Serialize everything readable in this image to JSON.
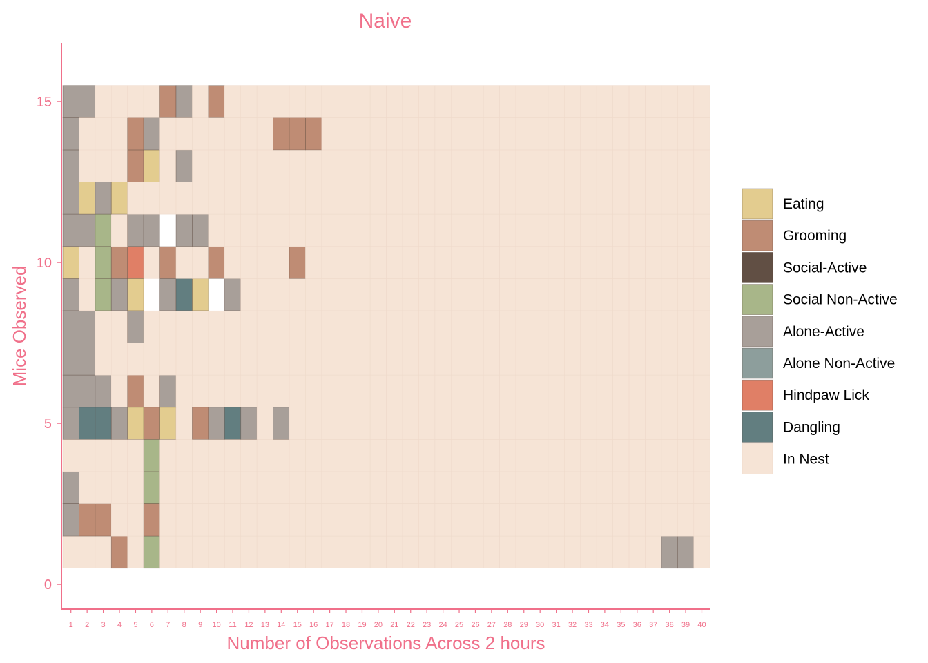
{
  "chart_data": {
    "type": "heatmap",
    "title": "Naive",
    "xlabel": "Number of Observations Across 2 hours",
    "ylabel": "Mice Observed",
    "x_categories": [
      "1",
      "2",
      "3",
      "4",
      "5",
      "6",
      "7",
      "8",
      "9",
      "10",
      "11",
      "12",
      "13",
      "14",
      "15",
      "16",
      "17",
      "18",
      "19",
      "20",
      "21",
      "22",
      "23",
      "24",
      "25",
      "26",
      "27",
      "28",
      "29",
      "30",
      "31",
      "32",
      "33",
      "34",
      "35",
      "36",
      "37",
      "38",
      "39",
      "40"
    ],
    "y_ticks": [
      "0",
      "5",
      "10",
      "15"
    ],
    "ylim": [
      -0.5,
      16.5
    ],
    "mice": [
      1,
      2,
      3,
      4,
      5,
      6,
      7,
      8,
      9,
      10,
      11,
      12,
      13,
      14,
      15
    ],
    "default_state": "In Nest",
    "legend": [
      {
        "label": "Eating",
        "color": "#e3cc8f"
      },
      {
        "label": "Grooming",
        "color": "#bf8c74"
      },
      {
        "label": "Social-Active",
        "color": "#614f44"
      },
      {
        "label": "Social Non-Active",
        "color": "#a8b689"
      },
      {
        "label": "Alone-Active",
        "color": "#a89f99"
      },
      {
        "label": "Alone Non-Active",
        "color": "#8d9e9c"
      },
      {
        "label": "Hindpaw Lick",
        "color": "#e07f66"
      },
      {
        "label": "Dangling",
        "color": "#627e80"
      },
      {
        "label": "In Nest",
        "color": "#f6e4d6"
      }
    ],
    "missing_color": "#ffffff",
    "observations": [
      {
        "mouse": 15,
        "obs": 1,
        "state": "Alone-Active"
      },
      {
        "mouse": 15,
        "obs": 2,
        "state": "Alone-Active"
      },
      {
        "mouse": 15,
        "obs": 7,
        "state": "Grooming"
      },
      {
        "mouse": 15,
        "obs": 8,
        "state": "Alone-Active"
      },
      {
        "mouse": 15,
        "obs": 10,
        "state": "Grooming"
      },
      {
        "mouse": 14,
        "obs": 1,
        "state": "Alone-Active"
      },
      {
        "mouse": 14,
        "obs": 5,
        "state": "Grooming"
      },
      {
        "mouse": 14,
        "obs": 6,
        "state": "Alone-Active"
      },
      {
        "mouse": 14,
        "obs": 14,
        "state": "Grooming"
      },
      {
        "mouse": 14,
        "obs": 15,
        "state": "Grooming"
      },
      {
        "mouse": 14,
        "obs": 16,
        "state": "Grooming"
      },
      {
        "mouse": 13,
        "obs": 1,
        "state": "Alone-Active"
      },
      {
        "mouse": 13,
        "obs": 5,
        "state": "Grooming"
      },
      {
        "mouse": 13,
        "obs": 6,
        "state": "Eating"
      },
      {
        "mouse": 13,
        "obs": 8,
        "state": "Alone-Active"
      },
      {
        "mouse": 12,
        "obs": 1,
        "state": "Alone-Active"
      },
      {
        "mouse": 12,
        "obs": 2,
        "state": "Eating"
      },
      {
        "mouse": 12,
        "obs": 3,
        "state": "Alone-Active"
      },
      {
        "mouse": 12,
        "obs": 4,
        "state": "Eating"
      },
      {
        "mouse": 11,
        "obs": 1,
        "state": "Alone-Active"
      },
      {
        "mouse": 11,
        "obs": 2,
        "state": "Alone-Active"
      },
      {
        "mouse": 11,
        "obs": 3,
        "state": "Social Non-Active"
      },
      {
        "mouse": 11,
        "obs": 5,
        "state": "Alone-Active"
      },
      {
        "mouse": 11,
        "obs": 6,
        "state": "Alone-Active"
      },
      {
        "mouse": 11,
        "obs": 7,
        "state": "missing"
      },
      {
        "mouse": 11,
        "obs": 8,
        "state": "Alone-Active"
      },
      {
        "mouse": 11,
        "obs": 9,
        "state": "Alone-Active"
      },
      {
        "mouse": 10,
        "obs": 1,
        "state": "Eating"
      },
      {
        "mouse": 10,
        "obs": 3,
        "state": "Social Non-Active"
      },
      {
        "mouse": 10,
        "obs": 4,
        "state": "Grooming"
      },
      {
        "mouse": 10,
        "obs": 5,
        "state": "Hindpaw Lick"
      },
      {
        "mouse": 10,
        "obs": 7,
        "state": "Grooming"
      },
      {
        "mouse": 10,
        "obs": 10,
        "state": "Grooming"
      },
      {
        "mouse": 10,
        "obs": 15,
        "state": "Grooming"
      },
      {
        "mouse": 9,
        "obs": 1,
        "state": "Alone-Active"
      },
      {
        "mouse": 9,
        "obs": 3,
        "state": "Social Non-Active"
      },
      {
        "mouse": 9,
        "obs": 4,
        "state": "Alone-Active"
      },
      {
        "mouse": 9,
        "obs": 5,
        "state": "Eating"
      },
      {
        "mouse": 9,
        "obs": 6,
        "state": "missing"
      },
      {
        "mouse": 9,
        "obs": 7,
        "state": "Alone-Active"
      },
      {
        "mouse": 9,
        "obs": 8,
        "state": "Dangling"
      },
      {
        "mouse": 9,
        "obs": 9,
        "state": "Eating"
      },
      {
        "mouse": 9,
        "obs": 10,
        "state": "missing"
      },
      {
        "mouse": 9,
        "obs": 11,
        "state": "Alone-Active"
      },
      {
        "mouse": 8,
        "obs": 1,
        "state": "Alone-Active"
      },
      {
        "mouse": 8,
        "obs": 2,
        "state": "Alone-Active"
      },
      {
        "mouse": 8,
        "obs": 5,
        "state": "Alone-Active"
      },
      {
        "mouse": 7,
        "obs": 1,
        "state": "Alone-Active"
      },
      {
        "mouse": 7,
        "obs": 2,
        "state": "Alone-Active"
      },
      {
        "mouse": 6,
        "obs": 1,
        "state": "Alone-Active"
      },
      {
        "mouse": 6,
        "obs": 2,
        "state": "Alone-Active"
      },
      {
        "mouse": 6,
        "obs": 3,
        "state": "Alone-Active"
      },
      {
        "mouse": 6,
        "obs": 5,
        "state": "Grooming"
      },
      {
        "mouse": 6,
        "obs": 7,
        "state": "Alone-Active"
      },
      {
        "mouse": 5,
        "obs": 1,
        "state": "Alone-Active"
      },
      {
        "mouse": 5,
        "obs": 2,
        "state": "Dangling"
      },
      {
        "mouse": 5,
        "obs": 3,
        "state": "Dangling"
      },
      {
        "mouse": 5,
        "obs": 4,
        "state": "Alone-Active"
      },
      {
        "mouse": 5,
        "obs": 5,
        "state": "Eating"
      },
      {
        "mouse": 5,
        "obs": 6,
        "state": "Grooming"
      },
      {
        "mouse": 5,
        "obs": 7,
        "state": "Eating"
      },
      {
        "mouse": 5,
        "obs": 9,
        "state": "Grooming"
      },
      {
        "mouse": 5,
        "obs": 10,
        "state": "Alone-Active"
      },
      {
        "mouse": 5,
        "obs": 11,
        "state": "Dangling"
      },
      {
        "mouse": 5,
        "obs": 12,
        "state": "Alone-Active"
      },
      {
        "mouse": 5,
        "obs": 14,
        "state": "Alone-Active"
      },
      {
        "mouse": 4,
        "obs": 6,
        "state": "Social Non-Active"
      },
      {
        "mouse": 3,
        "obs": 1,
        "state": "Alone-Active"
      },
      {
        "mouse": 3,
        "obs": 6,
        "state": "Social Non-Active"
      },
      {
        "mouse": 2,
        "obs": 1,
        "state": "Alone-Active"
      },
      {
        "mouse": 2,
        "obs": 2,
        "state": "Grooming"
      },
      {
        "mouse": 2,
        "obs": 3,
        "state": "Grooming"
      },
      {
        "mouse": 2,
        "obs": 6,
        "state": "Grooming"
      },
      {
        "mouse": 1,
        "obs": 4,
        "state": "Grooming"
      },
      {
        "mouse": 1,
        "obs": 6,
        "state": "Social Non-Active"
      },
      {
        "mouse": 1,
        "obs": 38,
        "state": "Alone-Active"
      },
      {
        "mouse": 1,
        "obs": 39,
        "state": "Alone-Active"
      }
    ],
    "axis_color": "#f0708a",
    "grid": false
  }
}
